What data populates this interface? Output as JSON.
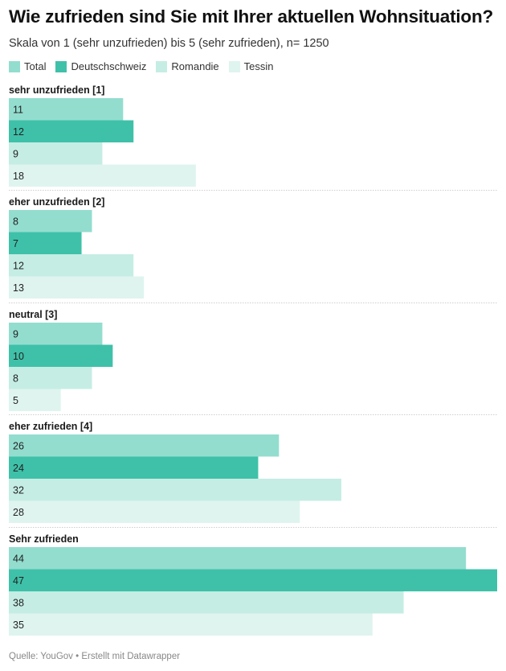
{
  "title": "Wie zufrieden sind Sie mit Ihrer aktuellen Wohnsituation?",
  "subtitle": "Skala von 1 (sehr unzufrieden) bis 5 (sehr zufrieden),  n= 1250",
  "footer": "Quelle: YouGov • Erstellt mit Datawrapper",
  "legend": [
    {
      "name": "Total",
      "color": "#93ddcf"
    },
    {
      "name": "Deutschschweiz",
      "color": "#3fc1a9"
    },
    {
      "name": "Romandie",
      "color": "#c5ede4"
    },
    {
      "name": "Tessin",
      "color": "#dff4ef"
    }
  ],
  "chart_data": {
    "type": "bar",
    "orientation": "horizontal",
    "title": "Wie zufrieden sind Sie mit Ihrer aktuellen Wohnsituation?",
    "categories": [
      "sehr unzufrieden [1]",
      "eher unzufrieden [2]",
      "neutral [3]",
      "eher zufrieden [4]",
      "Sehr zufrieden"
    ],
    "series": [
      {
        "name": "Total",
        "color": "#93ddcf",
        "values": [
          11,
          8,
          9,
          26,
          44
        ]
      },
      {
        "name": "Deutschschweiz",
        "color": "#3fc1a9",
        "values": [
          12,
          7,
          10,
          24,
          47
        ]
      },
      {
        "name": "Romandie",
        "color": "#c5ede4",
        "values": [
          9,
          12,
          8,
          32,
          38
        ]
      },
      {
        "name": "Tessin",
        "color": "#dff4ef",
        "values": [
          18,
          13,
          5,
          28,
          35
        ]
      }
    ],
    "xlim": [
      0,
      47
    ]
  }
}
